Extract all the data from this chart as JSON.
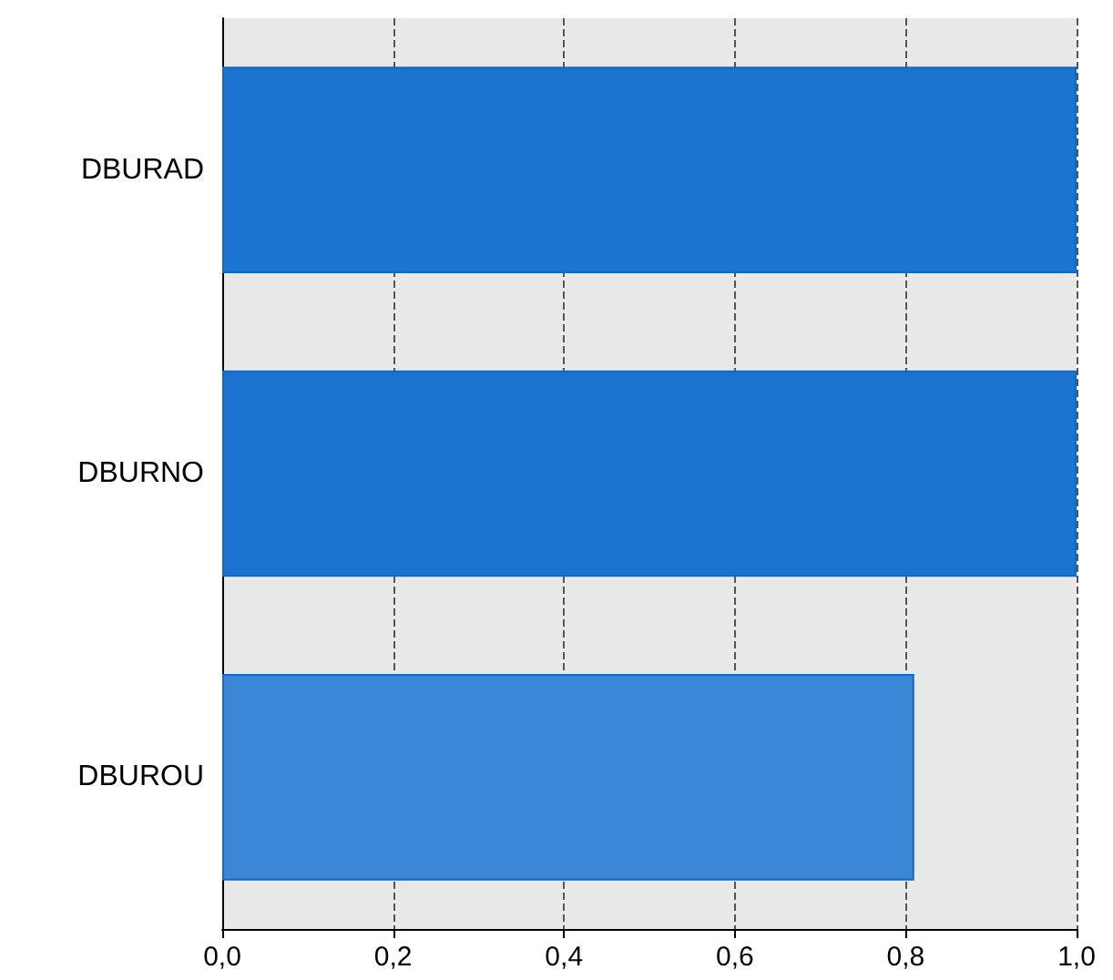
{
  "chart_data": {
    "type": "bar",
    "orientation": "horizontal",
    "categories": [
      "DBURAD",
      "DBURNO",
      "DBUROU"
    ],
    "values": [
      1.0,
      1.0,
      0.81
    ],
    "colors": [
      "#1a74d0",
      "#1a74d0",
      "#3a86d4"
    ],
    "xlim": [
      0,
      1.0
    ],
    "xticks": [
      {
        "value": 0,
        "label": "0,0"
      },
      {
        "value": 0.2,
        "label": "0,2"
      },
      {
        "value": 0.4,
        "label": "0,4"
      },
      {
        "value": 0.6,
        "label": "0,6"
      },
      {
        "value": 0.8,
        "label": "0,8"
      },
      {
        "value": 1.0,
        "label": "1,0"
      }
    ],
    "grid": "x"
  }
}
